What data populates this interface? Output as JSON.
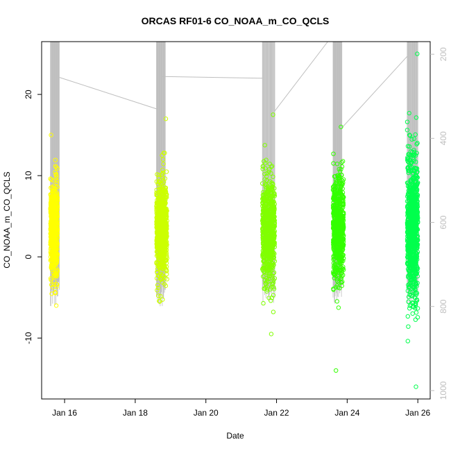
{
  "chart_data": {
    "type": "scatter",
    "title": "ORCAS RF01-6 CO_NOAA_m_CO_QCLS",
    "xlabel": "Date",
    "ylabel": "CO_NOAA_m_CO_QCLS",
    "x_unit": "day of January 2016",
    "xlim": [
      15.35,
      26.35
    ],
    "ylim": [
      -17.5,
      26.5
    ],
    "x_ticks": [
      {
        "value": 16,
        "label": "Jan 16"
      },
      {
        "value": 18,
        "label": "Jan 18"
      },
      {
        "value": 20,
        "label": "Jan 20"
      },
      {
        "value": 22,
        "label": "Jan 22"
      },
      {
        "value": 24,
        "label": "Jan 24"
      },
      {
        "value": 26,
        "label": "Jan 26"
      }
    ],
    "y_ticks": [
      -10,
      0,
      10,
      20
    ],
    "right_axis": {
      "color": "#bebebe",
      "ticks": [
        200,
        400,
        600,
        800,
        1000
      ],
      "range_top": 170,
      "range_bottom": 1020,
      "reversed": true
    },
    "grid": false,
    "marker": "open-circle",
    "series": [
      {
        "flight": 1,
        "color": "#ffff00",
        "x_start": 15.6,
        "x_end": 15.8,
        "center": 3.5,
        "spread": 2.8,
        "min": -6,
        "max": 15,
        "count": 700
      },
      {
        "flight": 2,
        "color": "#ccff00",
        "x_start": 18.6,
        "x_end": 18.9,
        "center": 3.5,
        "spread": 3.0,
        "min": -5.5,
        "max": 17,
        "count": 700
      },
      {
        "flight": 3,
        "color": "#80ff00",
        "x_start": 21.6,
        "x_end": 21.95,
        "center": 3.5,
        "spread": 3.2,
        "min": -9.5,
        "max": 17.5,
        "count": 700
      },
      {
        "flight": 4,
        "color": "#33ff00",
        "x_start": 23.6,
        "x_end": 23.9,
        "center": 3.5,
        "spread": 3.3,
        "min": -14,
        "max": 16,
        "count": 650
      },
      {
        "flight": 5,
        "color": "#00ff4d",
        "x_start": 25.7,
        "x_end": 26.0,
        "center": 3.5,
        "spread": 4.5,
        "min": -16,
        "max": 25,
        "count": 900
      }
    ],
    "altitude_trace": {
      "color": "#bebebe",
      "segments": [
        {
          "x0": 15.6,
          "x1": 15.85,
          "bottom": 800
        },
        {
          "x0": 18.6,
          "x1": 18.85,
          "bottom": 800
        },
        {
          "x0": 21.6,
          "x1": 21.95,
          "bottom": 800
        },
        {
          "x0": 23.6,
          "x1": 23.85,
          "bottom": 800
        },
        {
          "x0": 25.7,
          "x1": 26.0,
          "bottom": 800
        }
      ],
      "transit_lines": [
        {
          "x0": 15.85,
          "y0": 255,
          "x1": 18.6,
          "y1": 330
        },
        {
          "x0": 18.75,
          "y0": 253,
          "x1": 21.6,
          "y1": 257
        },
        {
          "x0": 21.95,
          "y0": 335,
          "x1": 23.45,
          "y1": 170
        },
        {
          "x0": 23.85,
          "y0": 375,
          "x1": 25.7,
          "y1": 205
        }
      ]
    }
  }
}
